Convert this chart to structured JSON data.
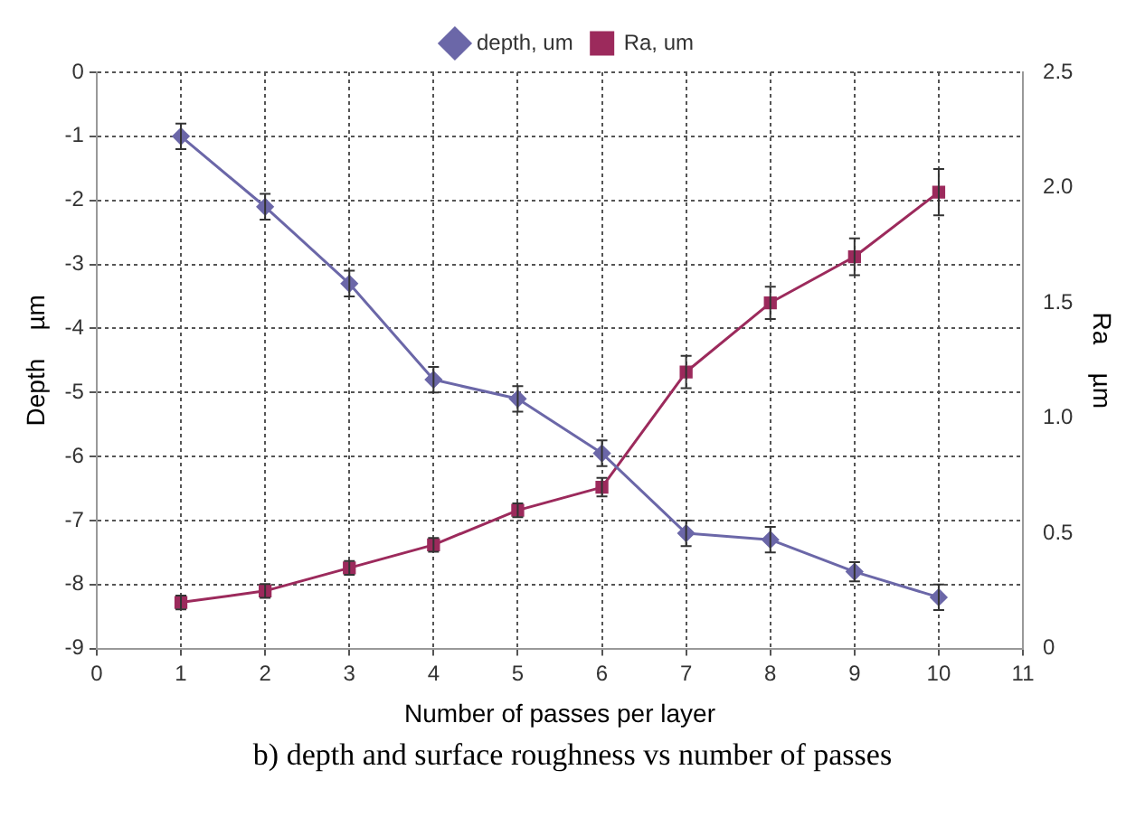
{
  "chart_data": {
    "type": "line",
    "xlabel": "Number of passes per layer",
    "ylabel": "Depth    µm",
    "y2label": "Ra    µm",
    "annotations": [
      "b) depth and surface roughness vs number of passes"
    ],
    "x": [
      1,
      2,
      3,
      4,
      5,
      6,
      7,
      8,
      9,
      10
    ],
    "series": [
      {
        "name": "depth, um",
        "color": "#6b67a8",
        "marker": "diamond",
        "values": [
          -1,
          -2.1,
          -3.3,
          -4.8,
          -5.1,
          -5.95,
          -7.2,
          -7.3,
          -7.8,
          -8.2
        ],
        "errors": [
          0.2,
          0.2,
          0.2,
          0.2,
          0.2,
          0.2,
          0.2,
          0.2,
          0.15,
          0.2
        ]
      },
      {
        "name": "Ra, um",
        "color": "#9c2a5c",
        "marker": "square",
        "axis": "y2",
        "values": [
          0.2,
          0.25,
          0.35,
          0.45,
          0.6,
          0.7,
          1.2,
          1.5,
          1.7,
          1.98
        ],
        "errors": [
          0.03,
          0.03,
          0.03,
          0.03,
          0.03,
          0.04,
          0.07,
          0.07,
          0.08,
          0.1
        ]
      }
    ],
    "xlim": [
      0,
      11
    ],
    "xticks": [
      0,
      1,
      2,
      3,
      4,
      5,
      6,
      7,
      8,
      9,
      10,
      11
    ],
    "ylim": [
      -9,
      0
    ],
    "yticks": [
      -9,
      -8,
      -7,
      -6,
      -5,
      -4,
      -3,
      -2,
      -1,
      0
    ],
    "y2lim": [
      0,
      2.5
    ],
    "y2ticks": [
      0,
      {
        "value": 0.5,
        "label": "0.5"
      },
      {
        "value": 1,
        "label": "1.0"
      },
      {
        "value": 1.5,
        "label": "1.5"
      },
      {
        "value": 2,
        "label": "2.0"
      },
      {
        "value": 2.5,
        "label": "2.5"
      }
    ],
    "grid": true,
    "legend": "top"
  }
}
